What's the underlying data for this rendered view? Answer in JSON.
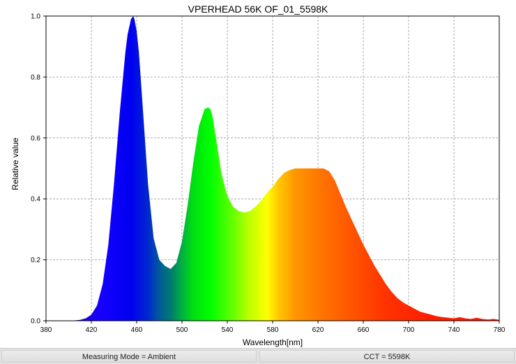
{
  "chart_data": {
    "type": "area",
    "title": "VPERHEAD 56K OF_01_5598K",
    "xlabel": "Wavelength[nm]",
    "ylabel": "Relative value",
    "xlim": [
      380,
      780
    ],
    "ylim": [
      0,
      1.0
    ],
    "x_ticks": [
      "380",
      "420",
      "460",
      "500",
      "540",
      "580",
      "620",
      "660",
      "700",
      "740",
      "780"
    ],
    "y_ticks": [
      "0.0",
      "0.2",
      "0.4",
      "0.6",
      "0.8",
      "1.0"
    ],
    "grid": true,
    "fill": "visible-spectrum gradient",
    "series": [
      {
        "x": [
          400,
          405,
          410,
          415,
          420,
          425,
          430,
          435,
          440,
          445,
          450,
          452,
          455,
          457,
          458,
          460,
          462,
          465,
          470,
          475,
          480,
          485,
          490,
          495,
          500,
          505,
          510,
          515,
          520,
          523,
          525,
          527,
          530,
          535,
          540,
          545,
          550,
          555,
          560,
          565,
          570,
          575,
          580,
          585,
          590,
          595,
          600,
          605,
          610,
          615,
          620,
          625,
          630,
          635,
          640,
          645,
          650,
          655,
          660,
          665,
          670,
          675,
          680,
          685,
          690,
          695,
          700,
          705,
          710,
          715,
          720,
          725,
          730,
          735,
          740,
          745,
          750,
          755,
          760,
          765,
          770,
          775,
          780
        ],
        "y": [
          0.0,
          0.001,
          0.003,
          0.008,
          0.02,
          0.05,
          0.12,
          0.25,
          0.45,
          0.68,
          0.88,
          0.94,
          0.99,
          1.0,
          0.99,
          0.95,
          0.88,
          0.72,
          0.45,
          0.27,
          0.2,
          0.18,
          0.17,
          0.19,
          0.26,
          0.38,
          0.52,
          0.64,
          0.695,
          0.7,
          0.695,
          0.67,
          0.6,
          0.48,
          0.41,
          0.375,
          0.36,
          0.355,
          0.36,
          0.375,
          0.395,
          0.42,
          0.44,
          0.465,
          0.485,
          0.495,
          0.5,
          0.5,
          0.5,
          0.5,
          0.5,
          0.5,
          0.49,
          0.46,
          0.415,
          0.37,
          0.33,
          0.29,
          0.25,
          0.215,
          0.18,
          0.15,
          0.12,
          0.095,
          0.075,
          0.06,
          0.05,
          0.04,
          0.03,
          0.025,
          0.02,
          0.015,
          0.012,
          0.01,
          0.008,
          0.012,
          0.008,
          0.006,
          0.01,
          0.006,
          0.004,
          0.006,
          0.003
        ]
      }
    ]
  },
  "status_bar": {
    "measuring_mode": "Measuring Mode = Ambient",
    "cct": "CCT = 5598K"
  }
}
